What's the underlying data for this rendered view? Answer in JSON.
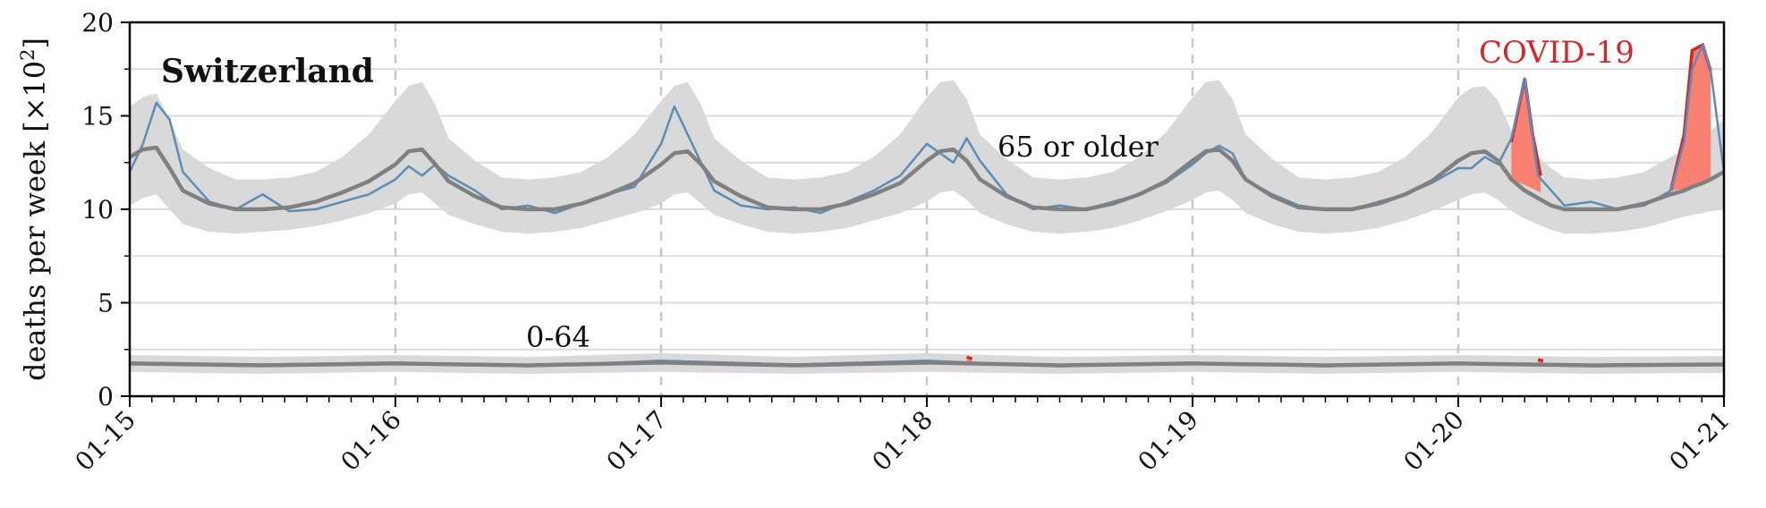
{
  "chart_data": {
    "type": "line",
    "region": "Switzerland",
    "ylabel": "deaths per week",
    "ylabel_unit": "[×10",
    "ylabel_exp": "2",
    "ylabel_close": "]",
    "ylim": [
      0,
      20
    ],
    "yticks": [
      "0",
      "5",
      "10",
      "15",
      "20"
    ],
    "xlim": [
      "2015-01",
      "2021-01"
    ],
    "xticks": [
      "01-15",
      "01-16",
      "01-17",
      "01-18",
      "01-19",
      "01-20",
      "01-21"
    ],
    "grid": "horizontal lines + dashed vertical lines at year starts",
    "annotations": {
      "older": "65 or older",
      "younger": "0-64",
      "covid": "COVID-19"
    },
    "colors": {
      "observed": "#5b8db8",
      "baseline": "#808080",
      "band": "#d9d9d9",
      "excess": "#fa8072",
      "excess_edge": "#d62728",
      "covid_text": "#d62728"
    },
    "series": [
      {
        "group": "older",
        "x_year_fraction": [
          2015.0,
          2015.05,
          2015.1,
          2015.15,
          2015.2,
          2015.3,
          2015.4,
          2015.5,
          2015.6,
          2015.7,
          2015.8,
          2015.9,
          2016.0,
          2016.05,
          2016.1,
          2016.15,
          2016.2,
          2016.3,
          2016.4,
          2016.5,
          2016.6,
          2016.7,
          2016.8,
          2016.9,
          2017.0,
          2017.05,
          2017.1,
          2017.15,
          2017.2,
          2017.3,
          2017.4,
          2017.5,
          2017.6,
          2017.7,
          2017.8,
          2017.9,
          2018.0,
          2018.05,
          2018.1,
          2018.15,
          2018.2,
          2018.3,
          2018.4,
          2018.5,
          2018.6,
          2018.7,
          2018.8,
          2018.9,
          2019.0,
          2019.05,
          2019.1,
          2019.15,
          2019.2,
          2019.3,
          2019.4,
          2019.5,
          2019.6,
          2019.7,
          2019.8,
          2019.9,
          2020.0,
          2020.05,
          2020.1,
          2020.15,
          2020.2,
          2020.25,
          2020.3,
          2020.35,
          2020.4,
          2020.5,
          2020.6,
          2020.7,
          2020.8,
          2020.85,
          2020.88,
          2020.92,
          2020.95,
          2021.0
        ],
        "observed": [
          12.0,
          13.5,
          15.7,
          14.8,
          12.0,
          10.4,
          10.0,
          10.8,
          9.9,
          10.0,
          10.4,
          10.8,
          11.6,
          12.3,
          11.8,
          12.4,
          11.8,
          11.0,
          10.0,
          10.2,
          9.8,
          10.3,
          10.8,
          11.2,
          13.5,
          15.5,
          14.0,
          12.5,
          11.0,
          10.2,
          10.0,
          10.1,
          9.8,
          10.4,
          11.0,
          11.8,
          13.5,
          13.0,
          12.5,
          13.8,
          12.6,
          10.8,
          10.0,
          10.2,
          10.0,
          10.4,
          10.8,
          11.4,
          12.4,
          13.0,
          13.4,
          13.0,
          11.6,
          10.8,
          10.2,
          10.0,
          10.0,
          10.4,
          10.8,
          11.4,
          12.2,
          12.2,
          12.8,
          12.4,
          13.8,
          17.0,
          11.8,
          11.0,
          10.2,
          10.4,
          10.0,
          10.2,
          11.0,
          13.6,
          17.5,
          18.8,
          17.4,
          12.0
        ],
        "baseline": [
          12.8,
          13.2,
          13.3,
          12.2,
          11.0,
          10.3,
          10.0,
          10.0,
          10.1,
          10.4,
          10.9,
          11.5,
          12.4,
          13.1,
          13.2,
          12.4,
          11.5,
          10.7,
          10.1,
          10.0,
          10.0,
          10.3,
          10.8,
          11.4,
          12.4,
          13.0,
          13.1,
          12.4,
          11.5,
          10.7,
          10.1,
          10.0,
          10.0,
          10.3,
          10.8,
          11.4,
          12.6,
          13.1,
          13.2,
          12.6,
          11.6,
          10.7,
          10.1,
          10.0,
          10.0,
          10.3,
          10.8,
          11.5,
          12.6,
          13.1,
          13.2,
          12.6,
          11.6,
          10.7,
          10.1,
          10.0,
          10.0,
          10.3,
          10.8,
          11.5,
          12.6,
          13.0,
          13.1,
          12.6,
          11.6,
          11.0,
          10.6,
          10.2,
          10.0,
          10.0,
          10.0,
          10.3,
          10.8,
          11.0,
          11.2,
          11.4,
          11.6,
          12.0
        ],
        "band_low": [
          10.2,
          10.6,
          10.8,
          10.0,
          9.2,
          8.8,
          8.7,
          8.8,
          8.9,
          9.1,
          9.4,
          9.8,
          10.3,
          10.8,
          10.9,
          10.3,
          9.7,
          9.2,
          8.8,
          8.7,
          8.8,
          9.0,
          9.4,
          9.8,
          10.3,
          10.8,
          10.9,
          10.3,
          9.7,
          9.2,
          8.8,
          8.7,
          8.8,
          9.0,
          9.4,
          9.8,
          10.4,
          10.9,
          11.0,
          10.5,
          9.8,
          9.2,
          8.8,
          8.7,
          8.8,
          9.0,
          9.4,
          9.9,
          10.5,
          10.9,
          11.0,
          10.5,
          9.8,
          9.2,
          8.8,
          8.7,
          8.8,
          9.0,
          9.4,
          9.9,
          10.5,
          10.8,
          10.9,
          10.5,
          9.9,
          9.5,
          9.2,
          8.9,
          8.7,
          8.7,
          8.8,
          9.0,
          9.4,
          9.6,
          9.7,
          9.8,
          9.9,
          10.0
        ],
        "band_high": [
          15.5,
          16.0,
          16.2,
          14.8,
          13.2,
          12.2,
          11.6,
          11.6,
          11.7,
          12.0,
          12.8,
          14.0,
          15.8,
          16.6,
          16.8,
          15.6,
          13.8,
          12.6,
          11.7,
          11.6,
          11.7,
          12.0,
          12.8,
          14.0,
          15.8,
          16.6,
          16.8,
          15.6,
          13.8,
          12.6,
          11.7,
          11.6,
          11.7,
          12.0,
          12.8,
          14.0,
          16.0,
          16.8,
          16.9,
          15.9,
          14.0,
          12.7,
          11.7,
          11.6,
          11.7,
          12.0,
          12.8,
          14.1,
          16.0,
          16.8,
          16.9,
          15.9,
          14.0,
          12.7,
          11.7,
          11.6,
          11.7,
          12.0,
          12.8,
          14.1,
          16.0,
          16.5,
          16.6,
          15.8,
          14.2,
          13.4,
          12.8,
          12.2,
          11.7,
          11.6,
          11.7,
          12.0,
          12.8,
          13.2,
          13.6,
          13.9,
          14.2,
          14.8
        ]
      },
      {
        "group": "younger",
        "x_year_fraction": [
          2015.0,
          2015.5,
          2016.0,
          2016.5,
          2017.0,
          2017.5,
          2018.0,
          2018.5,
          2019.0,
          2019.5,
          2020.0,
          2020.5,
          2021.0
        ],
        "observed": [
          1.8,
          1.7,
          1.8,
          1.6,
          1.9,
          1.7,
          1.9,
          1.6,
          1.8,
          1.6,
          1.8,
          1.6,
          1.7
        ],
        "baseline": [
          1.75,
          1.65,
          1.75,
          1.65,
          1.8,
          1.65,
          1.8,
          1.65,
          1.75,
          1.65,
          1.75,
          1.65,
          1.7
        ],
        "band_low": [
          1.3,
          1.2,
          1.3,
          1.2,
          1.3,
          1.2,
          1.3,
          1.2,
          1.3,
          1.2,
          1.3,
          1.2,
          1.25
        ],
        "band_high": [
          2.2,
          2.1,
          2.2,
          2.1,
          2.3,
          2.1,
          2.3,
          2.1,
          2.2,
          2.1,
          2.2,
          2.1,
          2.15
        ]
      }
    ],
    "excess_events": [
      {
        "group": "older",
        "x_year_fraction": [
          2020.2,
          2020.25,
          2020.28,
          2020.31
        ],
        "upper": [
          13.6,
          17.0,
          14.0,
          11.8
        ],
        "lower": [
          11.6,
          11.3,
          11.1,
          10.9
        ]
      },
      {
        "group": "older",
        "x_year_fraction": [
          2020.8,
          2020.85,
          2020.88,
          2020.92,
          2020.95
        ],
        "upper": [
          11.0,
          14.0,
          18.5,
          18.8,
          17.4
        ],
        "lower": [
          11.0,
          11.1,
          11.2,
          11.3,
          11.5
        ]
      },
      {
        "group": "younger",
        "x_year_fraction": [
          2018.15,
          2018.17
        ],
        "upper": [
          2.1,
          2.0
        ],
        "lower": [
          1.8,
          1.8
        ]
      },
      {
        "group": "younger",
        "x_year_fraction": [
          2020.3,
          2020.32
        ],
        "upper": [
          1.95,
          1.9
        ],
        "lower": [
          1.7,
          1.7
        ]
      }
    ]
  }
}
